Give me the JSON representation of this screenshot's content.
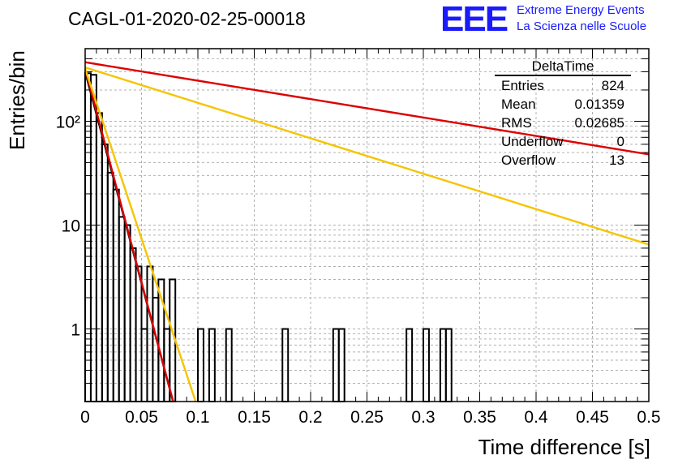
{
  "title": "CAGL-01-2020-02-25-00018",
  "logo": {
    "mark": "EEE",
    "line1": "Extreme Energy Events",
    "line2": "La Scienza nelle Scuole"
  },
  "stats": {
    "name": "DeltaTime",
    "rows": [
      {
        "label": "Entries",
        "value": "824"
      },
      {
        "label": "Mean",
        "value": "0.01359"
      },
      {
        "label": "RMS",
        "value": "0.02685"
      },
      {
        "label": "Underflow",
        "value": "0"
      },
      {
        "label": "Overflow",
        "value": "13"
      }
    ]
  },
  "colors": {
    "hist": "#000000",
    "fit_black": "#000000",
    "fit_red": "#dd0000",
    "fit_yellow": "#f5c400",
    "grid": "#b0b0b0"
  },
  "chart_data": {
    "type": "bar",
    "xlabel": "Time difference [s]",
    "ylabel": "Entries/bin",
    "xlim": [
      0,
      0.5
    ],
    "ylim": [
      0.2,
      500
    ],
    "yscale": "log",
    "grid": true,
    "xticks": [
      "0",
      "0.05",
      "0.1",
      "0.15",
      "0.2",
      "0.25",
      "0.3",
      "0.35",
      "0.4",
      "0.45",
      "0.5"
    ],
    "yticks": [
      {
        "v": 1,
        "label": "1"
      },
      {
        "v": 10,
        "label": "10"
      },
      {
        "v": 100,
        "label": "10²"
      }
    ],
    "bin_width": 0.005,
    "histogram": [
      {
        "x": 0.0,
        "y": 290
      },
      {
        "x": 0.005,
        "y": 280
      },
      {
        "x": 0.01,
        "y": 120
      },
      {
        "x": 0.015,
        "y": 60
      },
      {
        "x": 0.02,
        "y": 32
      },
      {
        "x": 0.025,
        "y": 22
      },
      {
        "x": 0.03,
        "y": 12
      },
      {
        "x": 0.035,
        "y": 10
      },
      {
        "x": 0.04,
        "y": 6
      },
      {
        "x": 0.045,
        "y": 4
      },
      {
        "x": 0.05,
        "y": 1
      },
      {
        "x": 0.055,
        "y": 4
      },
      {
        "x": 0.06,
        "y": 2
      },
      {
        "x": 0.065,
        "y": 3
      },
      {
        "x": 0.07,
        "y": 1
      },
      {
        "x": 0.075,
        "y": 3
      },
      {
        "x": 0.1,
        "y": 1
      },
      {
        "x": 0.11,
        "y": 1
      },
      {
        "x": 0.125,
        "y": 1
      },
      {
        "x": 0.175,
        "y": 1
      },
      {
        "x": 0.22,
        "y": 1
      },
      {
        "x": 0.225,
        "y": 1
      },
      {
        "x": 0.285,
        "y": 1
      },
      {
        "x": 0.3,
        "y": 1
      },
      {
        "x": 0.315,
        "y": 1
      },
      {
        "x": 0.32,
        "y": 1
      }
    ],
    "fits": [
      {
        "color": "#000000",
        "x": [
          0.0,
          0.078
        ],
        "y": [
          300,
          0.19
        ]
      },
      {
        "color": "#dd0000",
        "x": [
          0.0,
          0.078
        ],
        "y": [
          320,
          0.19
        ]
      },
      {
        "color": "#dd0000",
        "x": [
          0.0,
          0.5
        ],
        "y": [
          370,
          48
        ]
      },
      {
        "color": "#f5c400",
        "x": [
          0.0,
          0.098
        ],
        "y": [
          320,
          0.19
        ]
      },
      {
        "color": "#f5c400",
        "x": [
          0.0,
          0.5
        ],
        "y": [
          330,
          6.5
        ]
      }
    ]
  }
}
